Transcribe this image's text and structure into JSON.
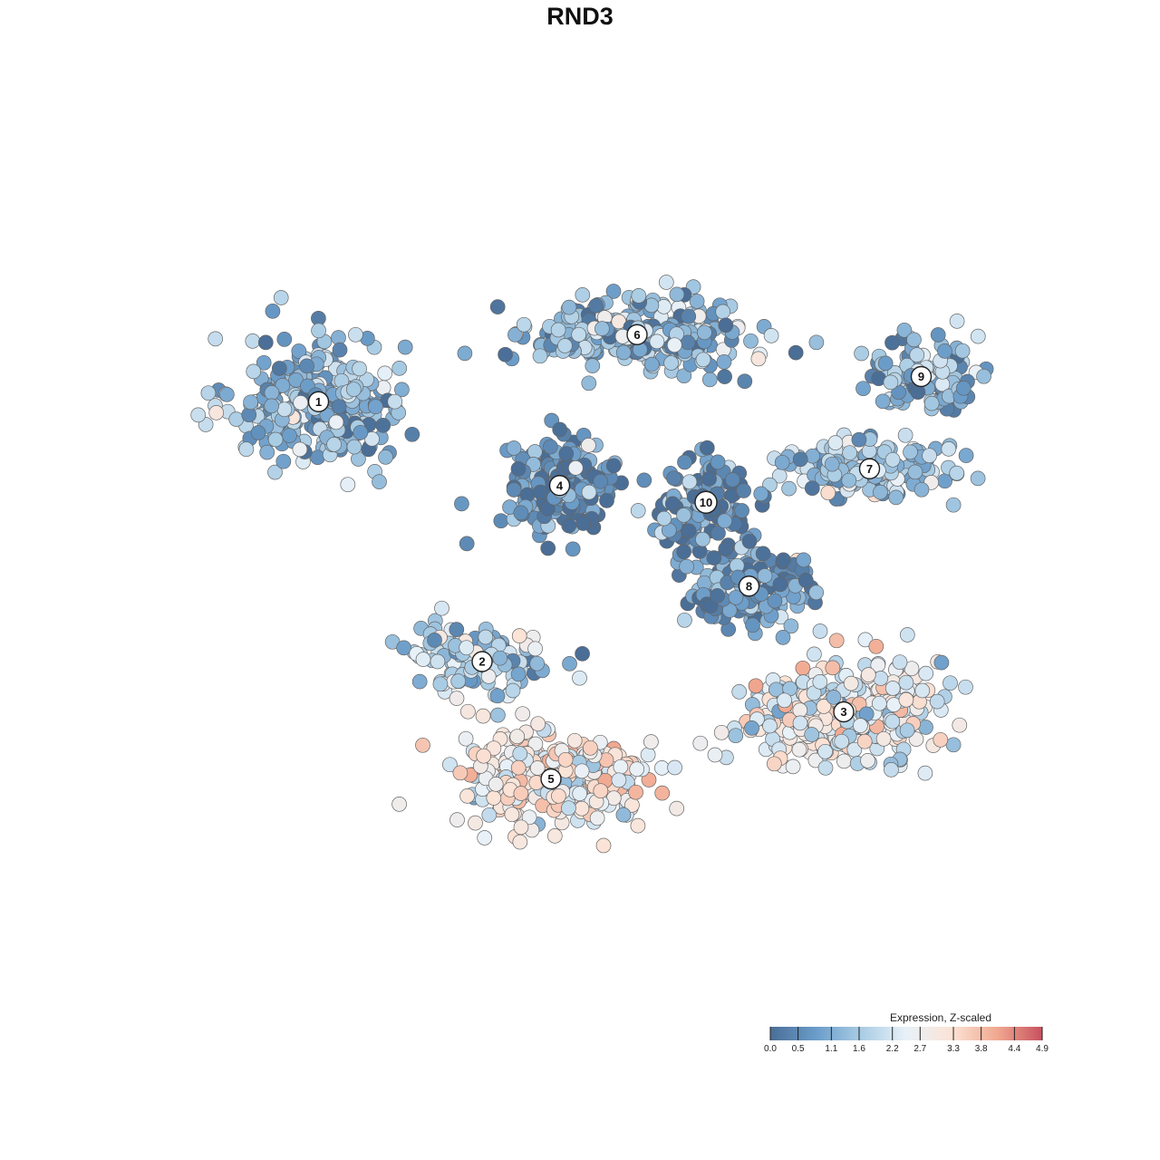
{
  "chart_data": {
    "type": "scatter",
    "title": "RND3",
    "xlabel": "",
    "ylabel": "",
    "grid": false,
    "legend_placement": "bottom-right",
    "colorbar": {
      "title": "Expression, Z-scaled",
      "min": 0.0,
      "max": 4.9,
      "ticks": [
        "0.0",
        "0.5",
        "1.1",
        "1.6",
        "2.2",
        "2.7",
        "3.3",
        "3.8",
        "4.4",
        "4.9"
      ],
      "colors": [
        "#4a6e96",
        "#6a9cc9",
        "#a9cce4",
        "#e8f1f8",
        "#fbe3d6",
        "#f1a990",
        "#c8515f"
      ]
    },
    "clusters": [
      {
        "label": "1",
        "x": 0.17,
        "y": 0.71,
        "mean_expression": 1.3
      },
      {
        "label": "2",
        "x": 0.36,
        "y": 0.4,
        "mean_expression": 1.5
      },
      {
        "label": "3",
        "x": 0.78,
        "y": 0.34,
        "mean_expression": 2.5
      },
      {
        "label": "4",
        "x": 0.45,
        "y": 0.61,
        "mean_expression": 0.6
      },
      {
        "label": "5",
        "x": 0.44,
        "y": 0.26,
        "mean_expression": 2.8
      },
      {
        "label": "6",
        "x": 0.54,
        "y": 0.79,
        "mean_expression": 1.3
      },
      {
        "label": "7",
        "x": 0.81,
        "y": 0.63,
        "mean_expression": 1.5
      },
      {
        "label": "8",
        "x": 0.67,
        "y": 0.49,
        "mean_expression": 0.7
      },
      {
        "label": "9",
        "x": 0.87,
        "y": 0.74,
        "mean_expression": 1.2
      },
      {
        "label": "10",
        "x": 0.62,
        "y": 0.59,
        "mean_expression": 0.5
      }
    ]
  }
}
